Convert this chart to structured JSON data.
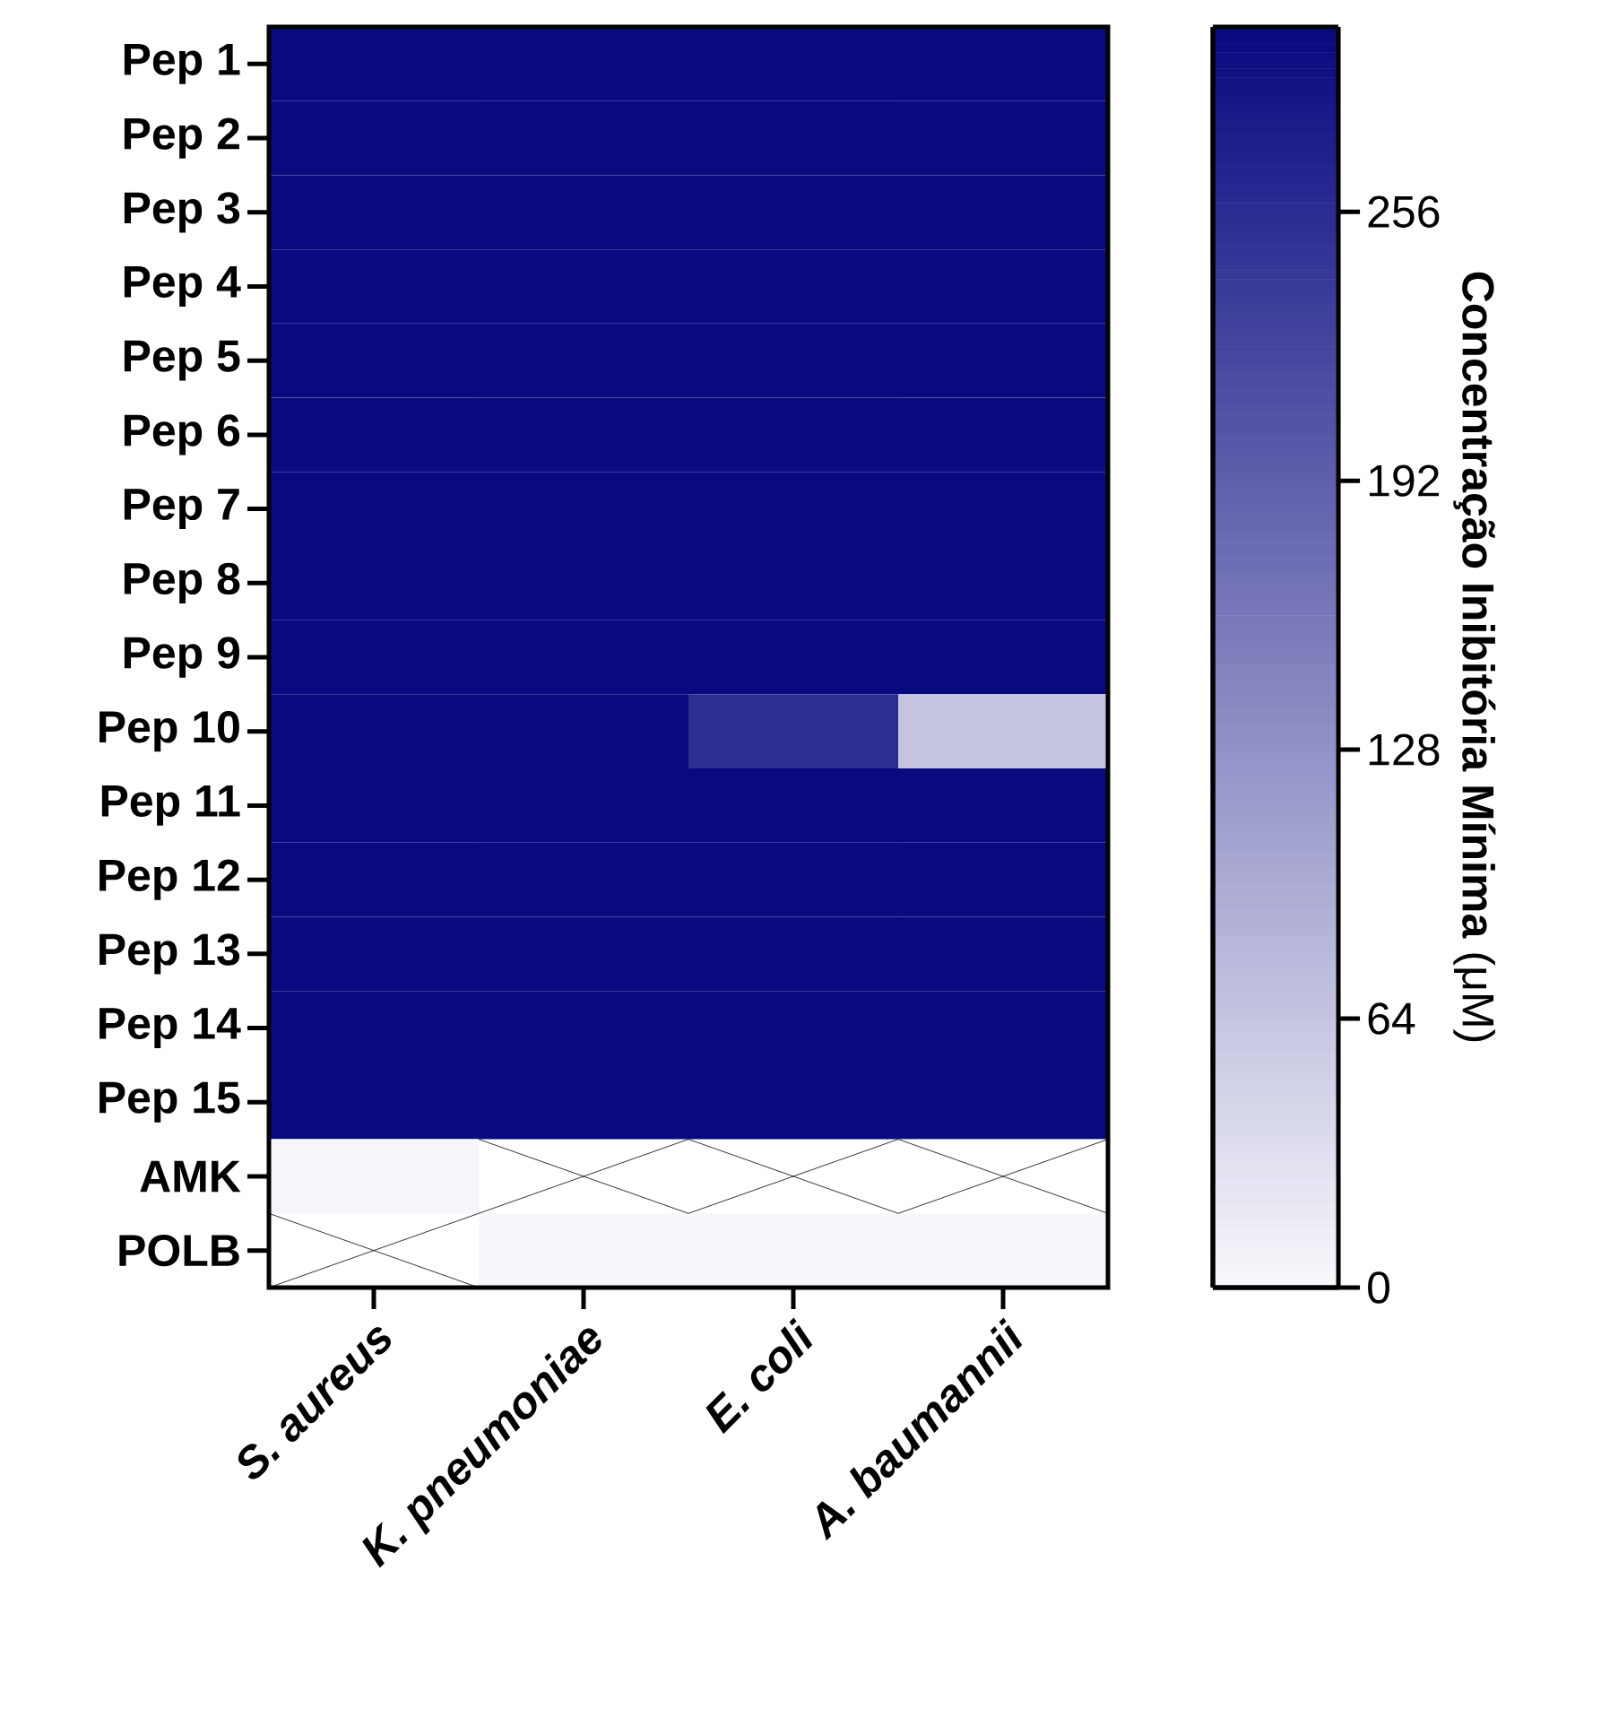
{
  "chart_data": {
    "type": "heatmap",
    "categories": [
      "S. aureus",
      "K. pneumoniae",
      "E. coli",
      "A. baumannii"
    ],
    "y_categories": [
      "Pep 1",
      "Pep 2",
      "Pep 3",
      "Pep 4",
      "Pep 5",
      "Pep 6",
      "Pep 7",
      "Pep 8",
      "Pep 9",
      "Pep 10",
      "Pep 11",
      "Pep 12",
      "Pep 13",
      "Pep 14",
      "Pep 15",
      "AMK",
      "POLB"
    ],
    "cells": [
      [
        300,
        300,
        300,
        300
      ],
      [
        300,
        300,
        300,
        300
      ],
      [
        300,
        300,
        300,
        300
      ],
      [
        300,
        300,
        300,
        300
      ],
      [
        300,
        300,
        300,
        300
      ],
      [
        300,
        300,
        300,
        300
      ],
      [
        300,
        300,
        300,
        300
      ],
      [
        300,
        300,
        300,
        300
      ],
      [
        300,
        300,
        300,
        300
      ],
      [
        300,
        300,
        256,
        64
      ],
      [
        300,
        300,
        300,
        300
      ],
      [
        300,
        300,
        300,
        300
      ],
      [
        300,
        300,
        300,
        300
      ],
      [
        300,
        300,
        300,
        300
      ],
      [
        300,
        300,
        300,
        300
      ],
      [
        4,
        null,
        null,
        null
      ],
      [
        null,
        2,
        2,
        2
      ]
    ],
    "clim": [
      0,
      300
    ],
    "cticks": [
      0,
      64,
      128,
      192,
      256
    ],
    "clabel": "**Concentração Inibitória Mínima** (μM)",
    "colors": [
      "#f8f8fc",
      "#0a0a80"
    ]
  }
}
